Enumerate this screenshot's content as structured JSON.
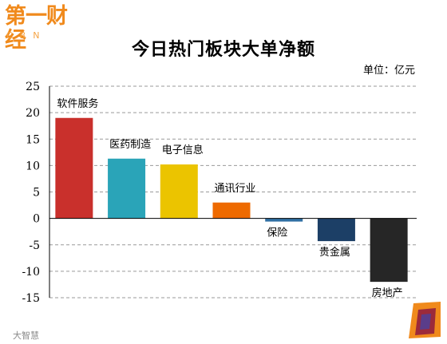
{
  "logo": {
    "main": "第一财经",
    "sub": "CBN"
  },
  "title": "今日热门板块大单净额",
  "unit": "单位：亿元",
  "watermark": "大智慧",
  "colors": {
    "grid": "#9a9a9a",
    "axis": "#000000",
    "logo": "#f08a1c"
  },
  "chart_data": {
    "type": "bar",
    "title": "今日热门板块大单净额",
    "unit_note": "单位：亿元",
    "categories": [
      "软件服务",
      "医药制造",
      "电子信息",
      "通讯行业",
      "保险",
      "贵金属",
      "房地产"
    ],
    "values": [
      19,
      11.3,
      10.2,
      3,
      -0.6,
      -4.3,
      -12
    ],
    "bar_colors": [
      "#c9302c",
      "#2aa4b8",
      "#ebc400",
      "#ee6a00",
      "#2f6fa3",
      "#1c3f66",
      "#262626"
    ],
    "ylim": [
      -15,
      25
    ],
    "yticks": [
      25,
      20,
      15,
      10,
      5,
      0,
      -5,
      -10,
      -15
    ],
    "ytick_labels": [
      "25",
      "20",
      "15",
      "10",
      "5",
      "0",
      "-5",
      "-10",
      "-15"
    ],
    "grid": true,
    "grid_style": "dashed",
    "xlabel": "",
    "ylabel": ""
  }
}
